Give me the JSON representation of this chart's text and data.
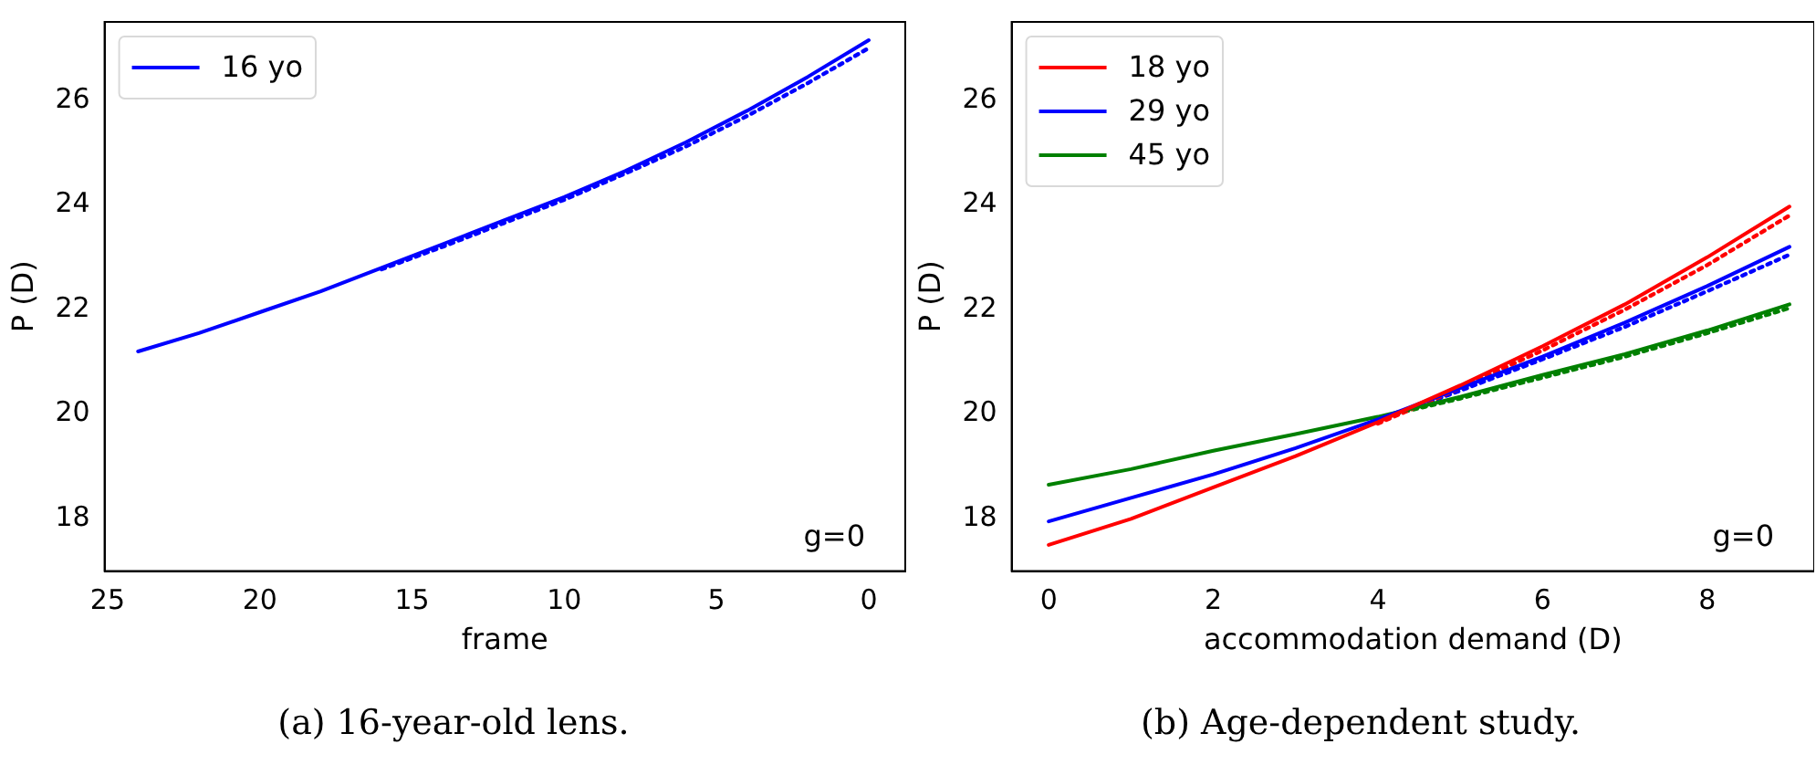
{
  "chart_data": [
    {
      "type": "line",
      "xlabel": "frame",
      "ylabel": "P (D)",
      "xlim": [
        25.1,
        -1.2
      ],
      "ylim": [
        17,
        27.5
      ],
      "xticks": [
        25,
        20,
        15,
        10,
        5,
        0
      ],
      "yticks": [
        18,
        20,
        22,
        24,
        26
      ],
      "legend": "top left",
      "grid": false,
      "marker": "none",
      "annotations": [
        "g=0",
        "(a) 16-year-old lens."
      ],
      "series": [
        {
          "name": "16 yo",
          "color": "#0000ff",
          "line_style": "solid",
          "x": [
            24,
            22,
            20,
            18,
            16,
            14,
            12,
            10,
            8,
            6,
            4,
            2,
            0
          ],
          "values": [
            21.2,
            21.55,
            21.95,
            22.35,
            22.8,
            23.25,
            23.7,
            24.15,
            24.65,
            25.2,
            25.8,
            26.45,
            27.15
          ]
        },
        {
          "color": "#0000ff",
          "line_style": "dotted",
          "x": [
            16,
            14,
            12,
            10,
            8,
            6,
            4,
            2,
            0
          ],
          "values": [
            22.77,
            23.2,
            23.65,
            24.1,
            24.6,
            25.12,
            25.7,
            26.33,
            27.0
          ]
        }
      ]
    },
    {
      "type": "line",
      "xlabel": "accommodation demand (D)",
      "ylabel": "P (D)",
      "xlim": [
        -0.45,
        9.3
      ],
      "ylim": [
        17,
        27.5
      ],
      "xticks": [
        0,
        2,
        4,
        6,
        8
      ],
      "yticks": [
        18,
        20,
        22,
        24,
        26
      ],
      "legend": "top left",
      "grid": false,
      "marker": "none",
      "annotations": [
        "g=0",
        "(b) Age-dependent study."
      ],
      "series": [
        {
          "name": "18 yo",
          "color": "#ff0000",
          "line_style": "solid",
          "x": [
            0,
            1,
            2,
            3,
            4,
            5,
            6,
            7,
            8,
            9
          ],
          "values": [
            17.5,
            18.0,
            18.6,
            19.2,
            19.85,
            20.55,
            21.3,
            22.1,
            23.0,
            23.97
          ]
        },
        {
          "name": "29 yo",
          "color": "#0000ff",
          "line_style": "solid",
          "x": [
            0,
            1,
            2,
            3,
            4,
            5,
            6,
            7,
            8,
            9
          ],
          "values": [
            17.95,
            18.4,
            18.85,
            19.35,
            19.9,
            20.5,
            21.1,
            21.75,
            22.45,
            23.2
          ]
        },
        {
          "name": "45 yo",
          "color": "#008000",
          "line_style": "solid",
          "x": [
            0,
            1,
            2,
            3,
            4,
            5,
            6,
            7,
            8,
            9
          ],
          "values": [
            18.65,
            18.95,
            19.3,
            19.62,
            19.95,
            20.33,
            20.75,
            21.15,
            21.6,
            22.1
          ]
        },
        {
          "color": "#ff0000",
          "line_style": "dotted",
          "x": [
            4,
            5,
            6,
            7,
            8,
            9
          ],
          "values": [
            19.82,
            20.5,
            21.22,
            22.0,
            22.85,
            23.8
          ]
        },
        {
          "color": "#0000ff",
          "line_style": "dotted",
          "x": [
            4,
            5,
            6,
            7,
            8,
            9
          ],
          "values": [
            19.87,
            20.45,
            21.05,
            21.67,
            22.35,
            23.05
          ]
        },
        {
          "color": "#008000",
          "line_style": "dotted",
          "x": [
            4,
            5,
            6,
            7,
            8,
            9
          ],
          "values": [
            19.93,
            20.3,
            20.7,
            21.1,
            21.55,
            22.03
          ]
        }
      ]
    }
  ]
}
